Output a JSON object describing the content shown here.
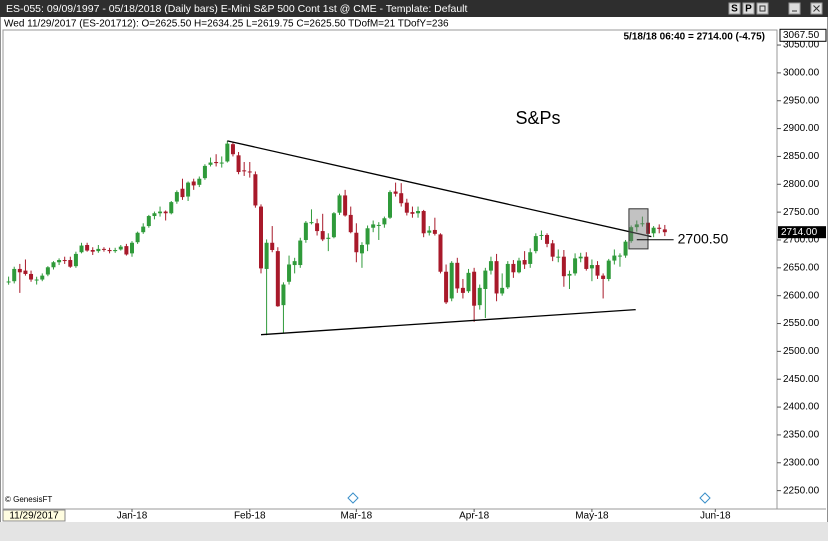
{
  "header": {
    "title": "ES-055:  09/09/1997 - 05/18/2018  (Daily bars)   E-Mini S&P 500 Cont 1st @ CME  -  Template: Default",
    "buttons": [
      "S",
      "P"
    ],
    "info": "Wed  11/29/2017 (ES-201712):  O=2625.50  H=2634.25  L=2619.75  C=2625.50  TDofM=21  TDofY=236",
    "quote": "5/18/18 06:40 = 2714.00 (-4.75)"
  },
  "footer": {
    "copyright": "© GenesisFT",
    "cursor_date": "11/29/2017"
  },
  "chart_data": {
    "type": "candlestick",
    "title": "S&Ps",
    "up_color": "#2f9a3a",
    "down_color": "#a8192a",
    "xlim": [
      -1,
      137
    ],
    "xticks": [
      {
        "value": 22,
        "label": "Jan-18"
      },
      {
        "value": 43,
        "label": "Feb-18"
      },
      {
        "value": 62,
        "label": "Mar-18"
      },
      {
        "value": 83,
        "label": "Apr-18"
      },
      {
        "value": 104,
        "label": "May-18"
      },
      {
        "value": 126,
        "label": "Jun-18"
      }
    ],
    "ylim": [
      2217,
      3077
    ],
    "yticks": [
      {
        "value": 2250,
        "label": "2250.00"
      },
      {
        "value": 2300,
        "label": "2300.00"
      },
      {
        "value": 2350,
        "label": "2350.00"
      },
      {
        "value": 2400,
        "label": "2400.00"
      },
      {
        "value": 2450,
        "label": "2450.00"
      },
      {
        "value": 2500,
        "label": "2500.00"
      },
      {
        "value": 2550,
        "label": "2550.00"
      },
      {
        "value": 2600,
        "label": "2600.00"
      },
      {
        "value": 2650,
        "label": "2650.00"
      },
      {
        "value": 2700,
        "label": "2700.00"
      },
      {
        "value": 2750,
        "label": "2750.00"
      },
      {
        "value": 2800,
        "label": "2800.00"
      },
      {
        "value": 2850,
        "label": "2850.00"
      },
      {
        "value": 2900,
        "label": "2900.00"
      },
      {
        "value": 2950,
        "label": "2950.00"
      },
      {
        "value": 3000,
        "label": "3000.00"
      },
      {
        "value": 3050,
        "label": "3050.00"
      }
    ],
    "top_label": {
      "value": 3067.5,
      "label": "3067.50"
    },
    "last_label": {
      "value": 2714,
      "label": "2714.00"
    },
    "ohlc": [
      [
        2625.5,
        2634.25,
        2619.75,
        2625.5
      ],
      [
        2626,
        2652,
        2622,
        2648
      ],
      [
        2648,
        2657,
        2605,
        2642
      ],
      [
        2645,
        2665,
        2636,
        2639
      ],
      [
        2639,
        2645,
        2625,
        2629
      ],
      [
        2629,
        2634,
        2620,
        2629
      ],
      [
        2629,
        2640,
        2626,
        2636
      ],
      [
        2638,
        2653,
        2635,
        2651
      ],
      [
        2651,
        2662,
        2647,
        2660
      ],
      [
        2660,
        2667,
        2655,
        2664
      ],
      [
        2664,
        2670,
        2657,
        2663
      ],
      [
        2664,
        2670,
        2650,
        2652
      ],
      [
        2653,
        2679,
        2650,
        2675
      ],
      [
        2678,
        2695,
        2676,
        2690
      ],
      [
        2691,
        2695,
        2679,
        2681
      ],
      [
        2682,
        2687,
        2673,
        2679
      ],
      [
        2680,
        2691,
        2677,
        2684
      ],
      [
        2684,
        2687,
        2679,
        2683
      ],
      [
        2682,
        2686,
        2676,
        2680
      ],
      [
        2680,
        2686,
        2677,
        2682
      ],
      [
        2683,
        2691,
        2681,
        2688
      ],
      [
        2689,
        2693,
        2672,
        2674
      ],
      [
        2676,
        2698,
        2670,
        2695
      ],
      [
        2696,
        2715,
        2693,
        2713
      ],
      [
        2714,
        2730,
        2711,
        2724
      ],
      [
        2725,
        2745,
        2722,
        2743
      ],
      [
        2743,
        2751,
        2737,
        2748
      ],
      [
        2748,
        2760,
        2742,
        2751
      ],
      [
        2751,
        2753,
        2735,
        2748
      ],
      [
        2748,
        2770,
        2746,
        2768
      ],
      [
        2769,
        2789,
        2765,
        2786
      ],
      [
        2792,
        2810,
        2772,
        2777
      ],
      [
        2778,
        2805,
        2770,
        2803
      ],
      [
        2805,
        2810,
        2790,
        2798
      ],
      [
        2799,
        2814,
        2795,
        2810
      ],
      [
        2811,
        2836,
        2808,
        2833
      ],
      [
        2835,
        2848,
        2832,
        2839
      ],
      [
        2840,
        2854,
        2832,
        2838
      ],
      [
        2839,
        2850,
        2830,
        2839
      ],
      [
        2841,
        2878,
        2839,
        2873
      ],
      [
        2872,
        2876,
        2850,
        2854
      ],
      [
        2852,
        2858,
        2818,
        2822
      ],
      [
        2825,
        2840,
        2815,
        2824
      ],
      [
        2823,
        2840,
        2812,
        2822
      ],
      [
        2818,
        2823,
        2758,
        2762
      ],
      [
        2760,
        2764,
        2640,
        2649
      ],
      [
        2648,
        2701,
        2529,
        2695
      ],
      [
        2695,
        2725,
        2678,
        2682
      ],
      [
        2680,
        2687,
        2580,
        2581
      ],
      [
        2583,
        2624,
        2532,
        2620
      ],
      [
        2625,
        2672,
        2620,
        2656
      ],
      [
        2655,
        2668,
        2640,
        2662
      ],
      [
        2655,
        2704,
        2650,
        2699
      ],
      [
        2700,
        2734,
        2695,
        2731
      ],
      [
        2731,
        2755,
        2728,
        2732
      ],
      [
        2730,
        2738,
        2708,
        2716
      ],
      [
        2716,
        2747,
        2698,
        2701
      ],
      [
        2702,
        2712,
        2680,
        2704
      ],
      [
        2705,
        2750,
        2703,
        2748
      ],
      [
        2749,
        2783,
        2745,
        2780
      ],
      [
        2780,
        2790,
        2742,
        2744
      ],
      [
        2745,
        2760,
        2712,
        2714
      ],
      [
        2713,
        2730,
        2660,
        2678
      ],
      [
        2676,
        2696,
        2650,
        2691
      ],
      [
        2692,
        2726,
        2680,
        2721
      ],
      [
        2722,
        2735,
        2714,
        2728
      ],
      [
        2727,
        2732,
        2700,
        2727
      ],
      [
        2728,
        2742,
        2722,
        2739
      ],
      [
        2740,
        2789,
        2738,
        2786
      ],
      [
        2787,
        2803,
        2778,
        2783
      ],
      [
        2784,
        2802,
        2760,
        2766
      ],
      [
        2767,
        2774,
        2744,
        2749
      ],
      [
        2750,
        2760,
        2740,
        2747
      ],
      [
        2748,
        2760,
        2740,
        2752
      ],
      [
        2752,
        2754,
        2705,
        2712
      ],
      [
        2713,
        2725,
        2708,
        2717
      ],
      [
        2718,
        2740,
        2708,
        2711
      ],
      [
        2710,
        2712,
        2640,
        2643
      ],
      [
        2643,
        2656,
        2585,
        2588
      ],
      [
        2595,
        2662,
        2590,
        2659
      ],
      [
        2659,
        2668,
        2605,
        2613
      ],
      [
        2614,
        2630,
        2595,
        2605
      ],
      [
        2608,
        2648,
        2605,
        2641
      ],
      [
        2643,
        2650,
        2553,
        2582
      ],
      [
        2583,
        2620,
        2575,
        2614
      ],
      [
        2612,
        2650,
        2560,
        2645
      ],
      [
        2645,
        2670,
        2638,
        2662
      ],
      [
        2662,
        2675,
        2590,
        2604
      ],
      [
        2604,
        2640,
        2600,
        2614
      ],
      [
        2615,
        2662,
        2612,
        2657
      ],
      [
        2657,
        2664,
        2632,
        2642
      ],
      [
        2642,
        2668,
        2640,
        2663
      ],
      [
        2664,
        2680,
        2648,
        2656
      ],
      [
        2657,
        2685,
        2650,
        2678
      ],
      [
        2680,
        2712,
        2676,
        2707
      ],
      [
        2708,
        2717,
        2700,
        2709
      ],
      [
        2709,
        2712,
        2687,
        2693
      ],
      [
        2694,
        2700,
        2662,
        2670
      ],
      [
        2670,
        2683,
        2660,
        2670
      ],
      [
        2670,
        2682,
        2616,
        2635
      ],
      [
        2636,
        2645,
        2612,
        2639
      ],
      [
        2640,
        2676,
        2636,
        2667
      ],
      [
        2667,
        2677,
        2660,
        2670
      ],
      [
        2670,
        2678,
        2645,
        2648
      ],
      [
        2649,
        2665,
        2626,
        2655
      ],
      [
        2655,
        2662,
        2630,
        2636
      ],
      [
        2636,
        2640,
        2595,
        2630
      ],
      [
        2630,
        2666,
        2626,
        2663
      ],
      [
        2663,
        2683,
        2656,
        2672
      ],
      [
        2672,
        2676,
        2652,
        2672
      ],
      [
        2672,
        2700,
        2668,
        2697
      ],
      [
        2698,
        2726,
        2695,
        2723
      ],
      [
        2723,
        2735,
        2715,
        2728
      ],
      [
        2729,
        2742,
        2724,
        2730
      ],
      [
        2731,
        2733,
        2705,
        2711
      ],
      [
        2712,
        2725,
        2705,
        2722
      ],
      [
        2722,
        2728,
        2712,
        2720
      ],
      [
        2719,
        2727,
        2707,
        2714
      ]
    ],
    "trendlines": [
      {
        "x": [
          39,
          114.6
        ],
        "y": [
          2878,
          2706
        ]
      },
      {
        "x": [
          45,
          111.8
        ],
        "y": [
          2530,
          2575
        ]
      }
    ],
    "level": {
      "x": [
        112,
        117.5
      ],
      "value": 2700.5,
      "label": "2700.50"
    },
    "highlight": {
      "x": [
        110.6,
        114
      ],
      "y": [
        2684,
        2756
      ]
    }
  }
}
